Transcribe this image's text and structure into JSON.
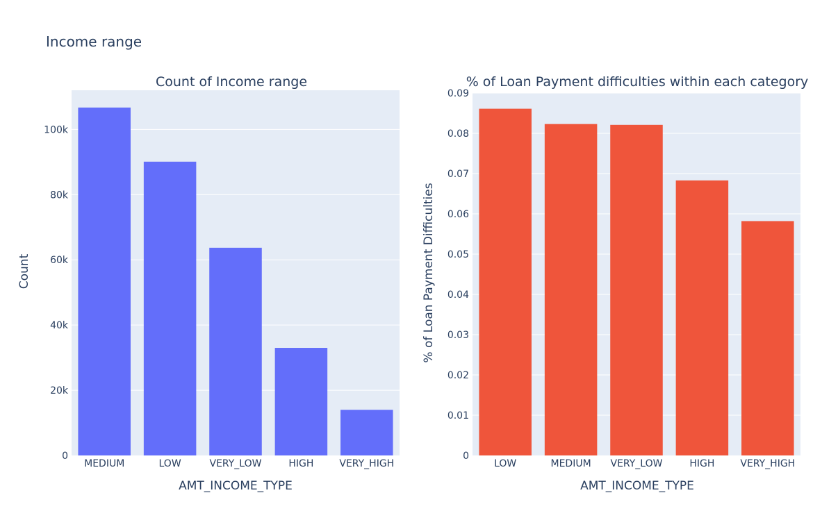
{
  "title": "Income range",
  "chart_data": [
    {
      "type": "bar",
      "title": "Count of Income range",
      "xlabel": "AMT_INCOME_TYPE",
      "ylabel": "Count",
      "categories": [
        "MEDIUM",
        "LOW",
        "VERY_LOW",
        "HIGH",
        "VERY_HIGH"
      ],
      "values": [
        106700,
        90100,
        63700,
        33000,
        14000
      ],
      "ylim": [
        0,
        112000
      ],
      "yticks": [
        0,
        20000,
        40000,
        60000,
        80000,
        100000
      ],
      "yticklabels": [
        "0",
        "20k",
        "40k",
        "60k",
        "80k",
        "100k"
      ],
      "color": "#636efa",
      "grid": true
    },
    {
      "type": "bar",
      "title": "% of Loan Payment difficulties within each category",
      "xlabel": "AMT_INCOME_TYPE",
      "ylabel": "% of Loan Payment Difficulties",
      "categories": [
        "LOW",
        "MEDIUM",
        "VERY_LOW",
        "HIGH",
        "VERY_HIGH"
      ],
      "values": [
        0.0861,
        0.0823,
        0.0821,
        0.0683,
        0.0582
      ],
      "ylim": [
        0,
        0.09
      ],
      "yticks": [
        0,
        0.01,
        0.02,
        0.03,
        0.04,
        0.05,
        0.06,
        0.07,
        0.08,
        0.09
      ],
      "yticklabels": [
        "0",
        "0.01",
        "0.02",
        "0.03",
        "0.04",
        "0.05",
        "0.06",
        "0.07",
        "0.08",
        "0.09"
      ],
      "color": "#ef553b",
      "grid": true
    }
  ]
}
